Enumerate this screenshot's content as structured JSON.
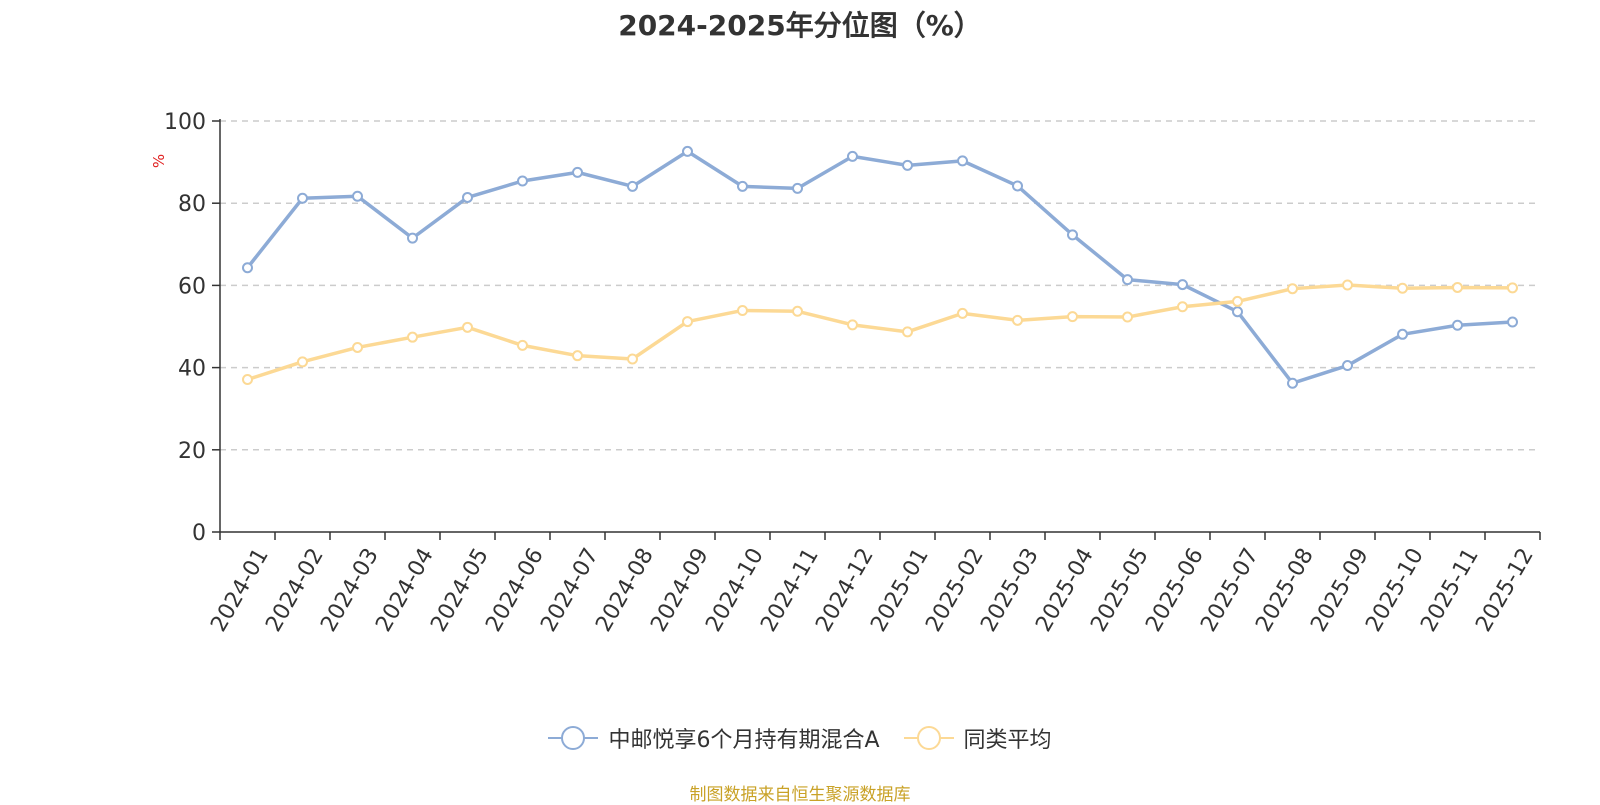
{
  "chart_data": {
    "type": "line",
    "title": "2024-2025年分位图（%）",
    "ylabel": "%",
    "xlabel": "",
    "ylim": [
      0,
      100
    ],
    "yticks": [
      0,
      20,
      40,
      60,
      80,
      100
    ],
    "grid": true,
    "legend_position": "bottom-center",
    "categories": [
      "2024-01",
      "2024-02",
      "2024-03",
      "2024-04",
      "2024-05",
      "2024-06",
      "2024-07",
      "2024-08",
      "2024-09",
      "2024-10",
      "2024-11",
      "2024-12",
      "2025-01",
      "2025-02",
      "2025-03",
      "2025-04",
      "2025-05",
      "2025-06",
      "2025-07",
      "2025-08",
      "2025-09",
      "2025-10",
      "2025-11",
      "2025-12"
    ],
    "series": [
      {
        "name": "中邮悦享6个月持有期混合A",
        "color": "#8dabd6",
        "values": [
          64.3,
          81.2,
          81.7,
          71.5,
          81.4,
          85.4,
          87.5,
          84.1,
          92.6,
          84.1,
          83.6,
          91.4,
          89.2,
          90.3,
          84.2,
          72.3,
          61.4,
          60.2,
          53.6,
          36.2,
          40.5,
          48.1,
          50.3,
          51.1
        ]
      },
      {
        "name": "同类平均",
        "color": "#fcd995",
        "values": [
          37.1,
          41.4,
          44.9,
          47.4,
          49.8,
          45.4,
          42.9,
          42.1,
          51.2,
          53.9,
          53.7,
          50.4,
          48.7,
          53.2,
          51.5,
          52.4,
          52.3,
          54.8,
          56.1,
          59.2,
          60.1,
          59.3,
          59.5,
          59.4
        ]
      }
    ]
  },
  "source_note": "制图数据来自恒生聚源数据库"
}
